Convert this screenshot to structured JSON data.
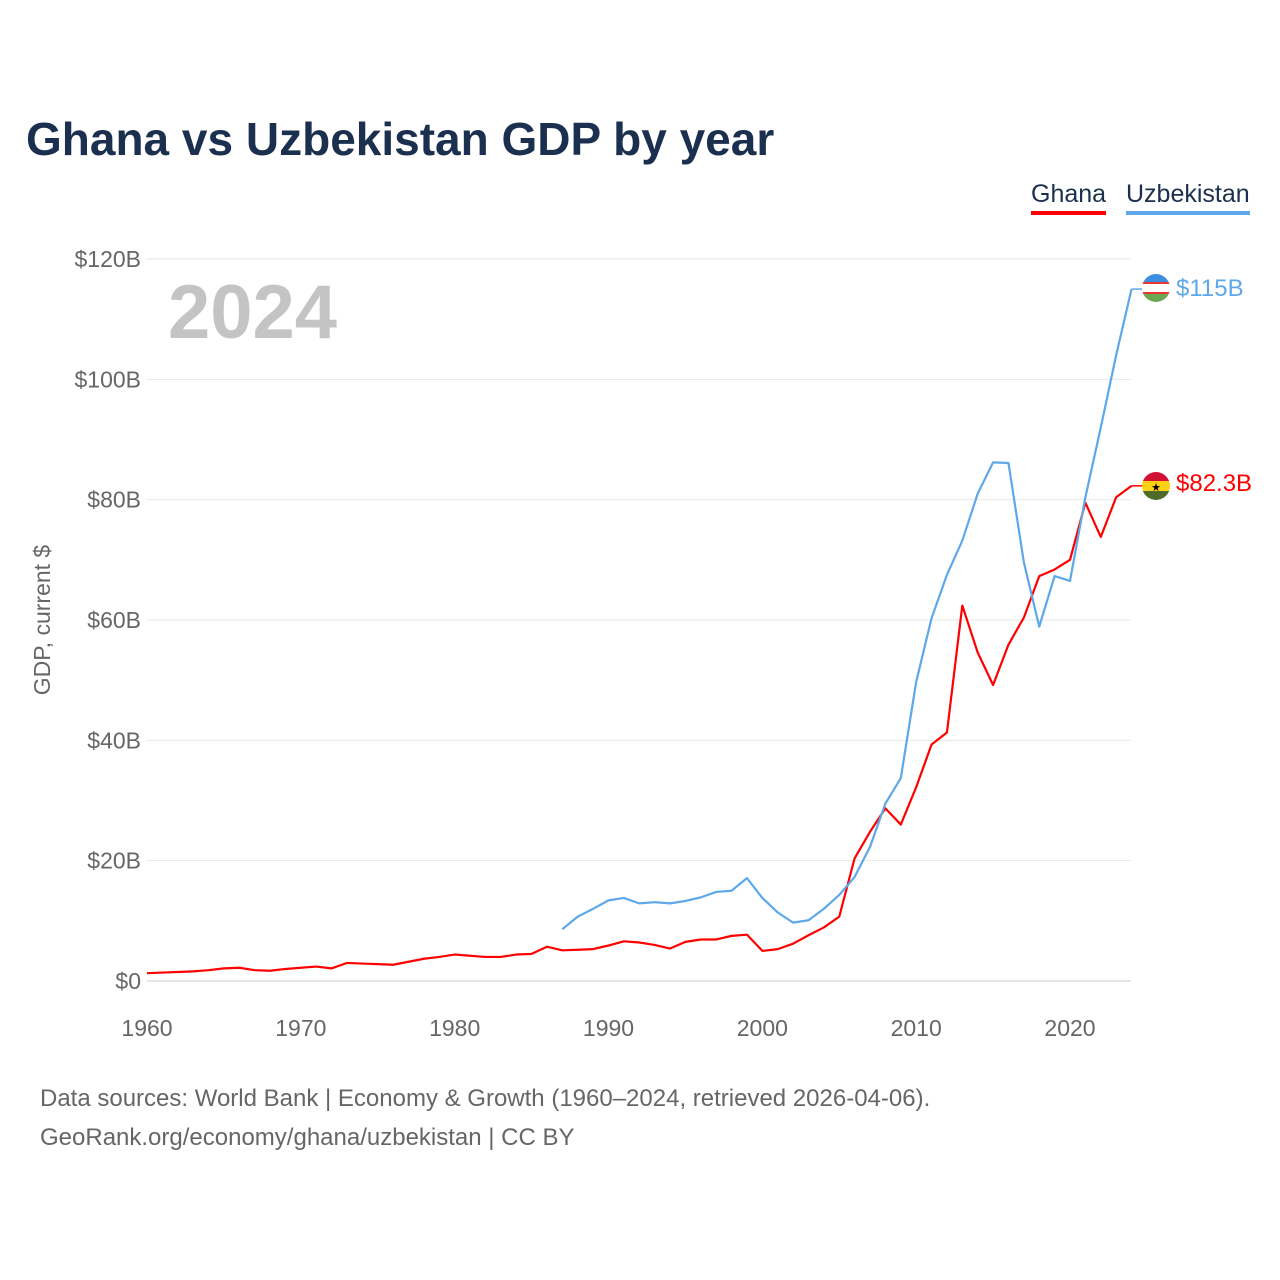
{
  "title": "Ghana vs Uzbekistan GDP by year",
  "legend": [
    "Ghana",
    "Uzbekistan"
  ],
  "year_label": "2024",
  "footer": {
    "line1": "Data sources: World Bank | Economy & Growth (1960–2024, retrieved 2026-04-06).",
    "line2": "GeoRank.org/economy/ghana/uzbekistan | CC BY"
  },
  "chart_data": {
    "type": "line",
    "title": "Ghana vs Uzbekistan GDP by year",
    "xlabel": "",
    "ylabel": "GDP, current $",
    "xlim": [
      1960,
      2024
    ],
    "ylim": [
      0,
      120
    ],
    "x_ticks": [
      1960,
      1970,
      1980,
      1990,
      2000,
      2010,
      2020
    ],
    "y_ticks": [
      0,
      20,
      40,
      60,
      80,
      100,
      120
    ],
    "y_tick_labels": [
      "$0",
      "$20B",
      "$40B",
      "$60B",
      "$80B",
      "$100B",
      "$120B"
    ],
    "grid": true,
    "legend_position": "top-right",
    "series": [
      {
        "name": "Ghana",
        "color": "#ff0000",
        "start_year": 1960,
        "end_label": "$82.3B",
        "values": [
          1.3,
          1.4,
          1.5,
          1.6,
          1.8,
          2.1,
          2.2,
          1.8,
          1.7,
          2.0,
          2.2,
          2.4,
          2.1,
          3.0,
          2.9,
          2.8,
          2.7,
          3.2,
          3.7,
          4.0,
          4.4,
          4.2,
          4.0,
          4.0,
          4.4,
          4.5,
          5.7,
          5.1,
          5.2,
          5.3,
          5.9,
          6.6,
          6.4,
          6.0,
          5.4,
          6.5,
          6.9,
          6.9,
          7.5,
          7.7,
          5.0,
          5.3,
          6.2,
          7.6,
          8.9,
          10.7,
          20.4,
          24.8,
          28.7,
          26.0,
          32.2,
          39.3,
          41.3,
          62.4,
          54.6,
          49.2,
          55.9,
          60.4,
          67.3,
          68.4,
          70.0,
          79.5,
          73.8,
          80.4,
          82.3
        ]
      },
      {
        "name": "Uzbekistan",
        "color": "#5ea8ea",
        "start_year": 1987,
        "end_label": "$115B",
        "values": [
          8.6,
          10.7,
          12.0,
          13.4,
          13.8,
          12.9,
          13.1,
          12.9,
          13.3,
          13.9,
          14.8,
          15.0,
          17.1,
          13.8,
          11.4,
          9.7,
          10.1,
          12.0,
          14.3,
          17.3,
          22.3,
          29.5,
          33.7,
          49.7,
          60.3,
          67.5,
          73.2,
          81.0,
          86.2,
          86.1,
          69.6,
          58.9,
          67.3,
          66.5,
          80.4,
          92.0,
          104.0,
          115.0
        ]
      }
    ]
  }
}
